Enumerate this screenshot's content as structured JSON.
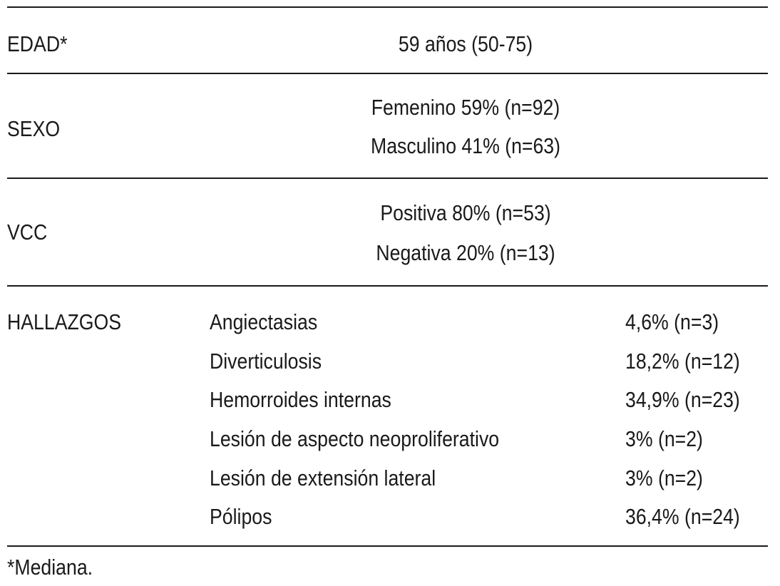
{
  "table": {
    "rows": [
      {
        "label": "EDAD*",
        "values": [
          "59 años (50-75)"
        ]
      },
      {
        "label": "SEXO",
        "values": [
          "Femenino 59% (n=92)",
          "Masculino 41% (n=63)"
        ]
      },
      {
        "label": "VCC",
        "values": [
          "Positiva 80% (n=53)",
          "Negativa 20% (n=13)"
        ]
      }
    ],
    "hallazgos": {
      "label": "HALLAZGOS",
      "items": [
        {
          "name": "Angiectasias",
          "value": "4,6% (n=3)"
        },
        {
          "name": "Diverticulosis",
          "value": "18,2% (n=12)"
        },
        {
          "name": "Hemorroides internas",
          "value": "34,9% (n=23)"
        },
        {
          "name": "Lesión de aspecto neoproliferativo",
          "value": "3% (n=2)"
        },
        {
          "name": "Lesión de extensión lateral",
          "value": "3% (n=2)"
        },
        {
          "name": "Pólipos",
          "value": "36,4% (n=24)"
        }
      ]
    },
    "footnote": "*Mediana."
  }
}
